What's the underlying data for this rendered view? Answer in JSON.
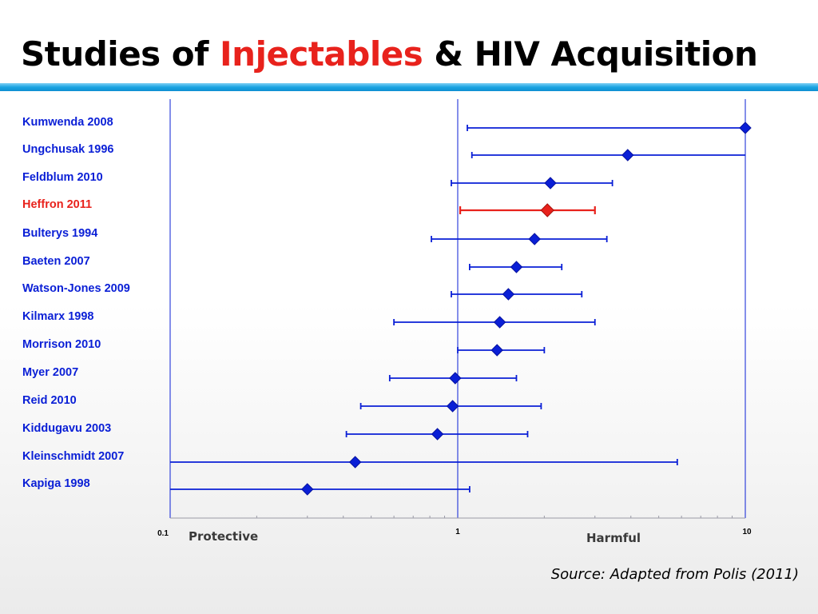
{
  "title": {
    "part1": "Studies of ",
    "highlight": "Injectables",
    "part2": " & HIV Acquisition"
  },
  "colors": {
    "accent": "#e8221c",
    "series": "#0a1fd6",
    "highlight_series": "#e8221c",
    "bar": "#1aa4e2"
  },
  "chart_data": {
    "type": "forest",
    "title": "Studies of Injectables & HIV Acquisition",
    "x_scale": "log",
    "xlim": [
      0.1,
      10
    ],
    "x_ticks": [
      "0.1",
      "1",
      "10"
    ],
    "x_tick_values": [
      0.1,
      1,
      10
    ],
    "label_protective": "Protective",
    "label_harmful": "Harmful",
    "studies": [
      {
        "name": "Kumwenda 2008",
        "estimate": 10.0,
        "ci_low": 1.08,
        "ci_high": 10.0,
        "highlight": false
      },
      {
        "name": "Ungchusak 1996",
        "estimate": 3.9,
        "ci_low": 1.12,
        "ci_high": 10.0,
        "highlight": false
      },
      {
        "name": "Feldblum 2010",
        "estimate": 2.1,
        "ci_low": 0.95,
        "ci_high": 3.45,
        "highlight": false
      },
      {
        "name": "Heffron 2011",
        "estimate": 2.05,
        "ci_low": 1.02,
        "ci_high": 3.0,
        "highlight": true
      },
      {
        "name": "Bulterys 1994",
        "estimate": 1.85,
        "ci_low": 0.81,
        "ci_high": 3.3,
        "highlight": false
      },
      {
        "name": "Baeten 2007",
        "estimate": 1.6,
        "ci_low": 1.1,
        "ci_high": 2.3,
        "highlight": false
      },
      {
        "name": "Watson-Jones 2009",
        "estimate": 1.5,
        "ci_low": 0.95,
        "ci_high": 2.7,
        "highlight": false
      },
      {
        "name": "Kilmarx 1998",
        "estimate": 1.4,
        "ci_low": 0.6,
        "ci_high": 3.0,
        "highlight": false
      },
      {
        "name": "Morrison 2010",
        "estimate": 1.37,
        "ci_low": 1.0,
        "ci_high": 2.0,
        "highlight": false
      },
      {
        "name": "Myer 2007",
        "estimate": 0.98,
        "ci_low": 0.58,
        "ci_high": 1.6,
        "highlight": false
      },
      {
        "name": "Reid 2010",
        "estimate": 0.96,
        "ci_low": 0.46,
        "ci_high": 1.95,
        "highlight": false
      },
      {
        "name": "Kiddugavu 2003",
        "estimate": 0.85,
        "ci_low": 0.41,
        "ci_high": 1.75,
        "highlight": false
      },
      {
        "name": "Kleinschmidt 2007",
        "estimate": 0.44,
        "ci_low": 0.1,
        "ci_high": 5.8,
        "highlight": false
      },
      {
        "name": "Kapiga 1998",
        "estimate": 0.3,
        "ci_low": 0.1,
        "ci_high": 1.1,
        "highlight": false
      }
    ]
  },
  "source": "Source:  Adapted from Polis (2011)"
}
